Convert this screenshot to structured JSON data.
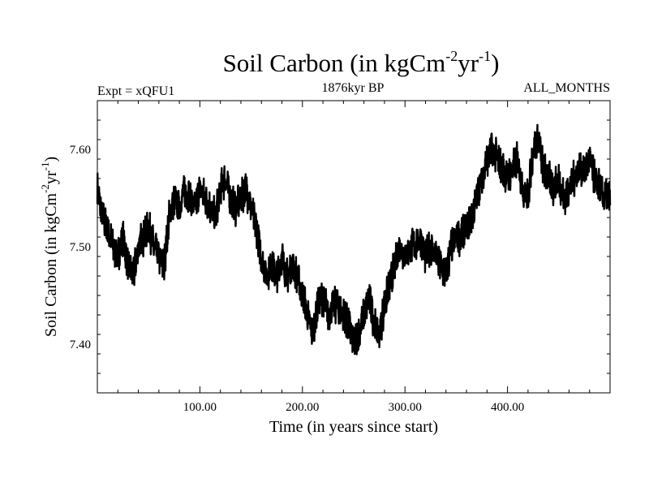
{
  "chart_data": {
    "type": "line",
    "title": {
      "main": "Soil Carbon (in kgCm",
      "sup1": "-2",
      "mid": "yr",
      "sup2": "-1",
      "end": ")"
    },
    "subtitle_left": "Expt = xQFU1",
    "subtitle_center": "1876kyr BP",
    "subtitle_right": "ALL_MONTHS",
    "xlabel": "Time (in years since start)",
    "ylabel": {
      "main": "Soil Carbon (in kgCm",
      "sup1": "-2",
      "mid": "yr",
      "sup2": "-1",
      "end": ")"
    },
    "xlim": [
      0,
      500
    ],
    "ylim": [
      7.35,
      7.65
    ],
    "x_ticks": [
      100,
      200,
      300,
      400
    ],
    "x_tick_labels": [
      "100.00",
      "200.00",
      "300.00",
      "400.00"
    ],
    "y_ticks": [
      7.4,
      7.5,
      7.6
    ],
    "y_tick_labels": [
      "7.40",
      "7.50",
      "7.60"
    ],
    "grid": false,
    "line_color": "#000000",
    "series": [
      {
        "x": [
          0,
          5,
          10,
          15,
          20,
          25,
          30,
          35,
          40,
          45,
          50,
          55,
          60,
          65,
          70,
          75,
          80,
          85,
          90,
          95,
          100,
          105,
          110,
          115,
          120,
          125,
          130,
          135,
          140,
          145,
          150,
          155,
          160,
          165,
          170,
          175,
          180,
          185,
          190,
          195,
          200,
          205,
          210,
          215,
          220,
          225,
          230,
          235,
          240,
          245,
          250,
          255,
          260,
          265,
          270,
          275,
          280,
          285,
          290,
          295,
          300,
          305,
          310,
          315,
          320,
          325,
          330,
          335,
          340,
          345,
          350,
          355,
          360,
          365,
          370,
          375,
          380,
          385,
          390,
          395,
          400,
          405,
          410,
          415,
          420,
          425,
          430,
          435,
          440,
          445,
          450,
          455,
          460,
          465,
          470,
          475,
          480,
          485,
          490,
          495,
          500
        ],
        "y": [
          7.56,
          7.53,
          7.52,
          7.5,
          7.49,
          7.51,
          7.48,
          7.47,
          7.5,
          7.51,
          7.52,
          7.5,
          7.49,
          7.48,
          7.53,
          7.55,
          7.54,
          7.56,
          7.55,
          7.54,
          7.56,
          7.55,
          7.54,
          7.53,
          7.56,
          7.57,
          7.55,
          7.54,
          7.55,
          7.56,
          7.54,
          7.52,
          7.49,
          7.47,
          7.48,
          7.47,
          7.49,
          7.47,
          7.48,
          7.47,
          7.45,
          7.43,
          7.41,
          7.44,
          7.45,
          7.43,
          7.44,
          7.44,
          7.43,
          7.42,
          7.4,
          7.41,
          7.43,
          7.45,
          7.42,
          7.41,
          7.44,
          7.46,
          7.48,
          7.5,
          7.49,
          7.5,
          7.5,
          7.51,
          7.49,
          7.5,
          7.49,
          7.48,
          7.47,
          7.5,
          7.51,
          7.51,
          7.52,
          7.53,
          7.55,
          7.57,
          7.59,
          7.6,
          7.59,
          7.58,
          7.57,
          7.58,
          7.59,
          7.56,
          7.55,
          7.6,
          7.61,
          7.58,
          7.57,
          7.56,
          7.57,
          7.55,
          7.56,
          7.57,
          7.58,
          7.58,
          7.59,
          7.57,
          7.56,
          7.55,
          7.55
        ]
      }
    ]
  }
}
